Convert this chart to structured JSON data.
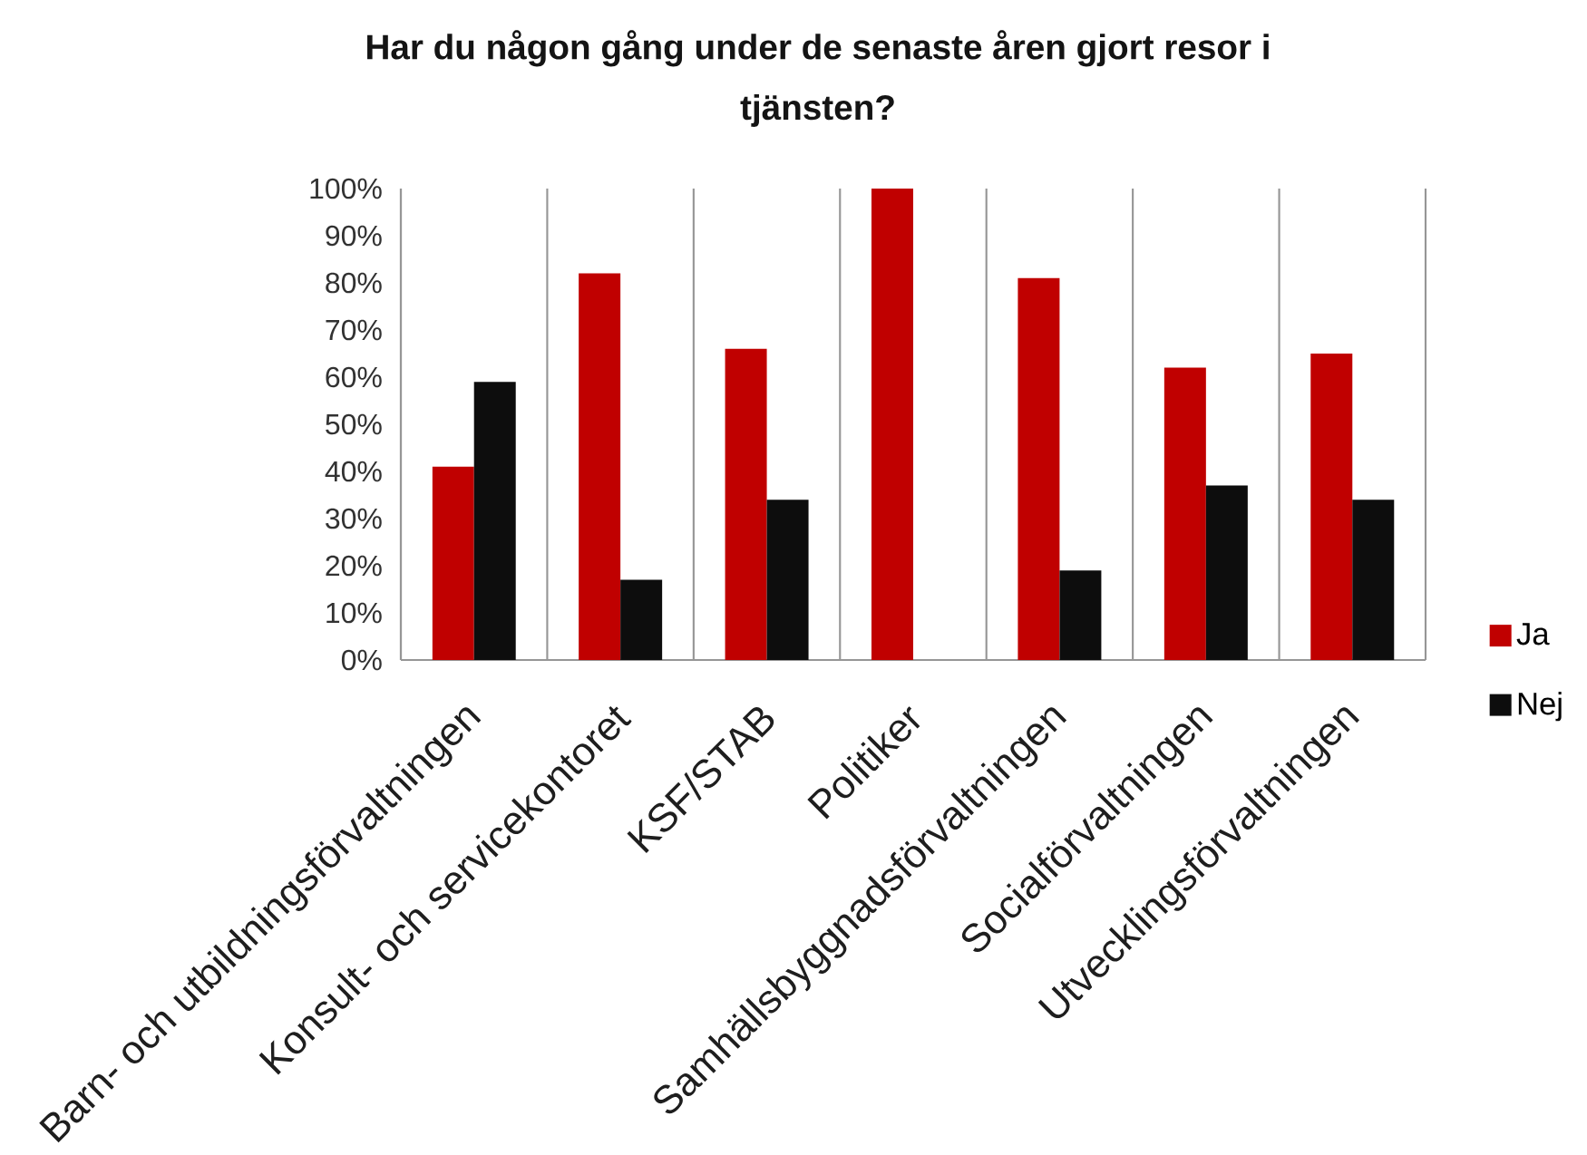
{
  "chart_data": {
    "type": "bar",
    "title": "Har du någon gång under de senaste åren gjort resor i tjänsten?",
    "categories": [
      "Barn- och utbildningsförvaltningen",
      "Konsult- och servicekontoret",
      "KSF/STAB",
      "Politiker",
      "Samhällsbyggnadsförvaltningen",
      "Socialförvaltningen",
      "Utvecklingsförvaltningen"
    ],
    "series": [
      {
        "name": "Ja",
        "color": "#c00000",
        "values": [
          41,
          82,
          66,
          100,
          81,
          62,
          65
        ]
      },
      {
        "name": "Nej",
        "color": "#0d0d0d",
        "values": [
          59,
          17,
          34,
          null,
          19,
          37,
          34
        ]
      }
    ],
    "ylim": [
      0,
      100
    ],
    "yticks": [
      {
        "value": 0,
        "label": "0%"
      },
      {
        "value": 10,
        "label": "10%"
      },
      {
        "value": 20,
        "label": "20%"
      },
      {
        "value": 30,
        "label": "30%"
      },
      {
        "value": 40,
        "label": "40%"
      },
      {
        "value": 50,
        "label": "50%"
      },
      {
        "value": 60,
        "label": "60%"
      },
      {
        "value": 70,
        "label": "70%"
      },
      {
        "value": 80,
        "label": "80%"
      },
      {
        "value": 90,
        "label": "90%"
      },
      {
        "value": 100,
        "label": "100%"
      }
    ],
    "grid": "x",
    "legend": "right"
  }
}
